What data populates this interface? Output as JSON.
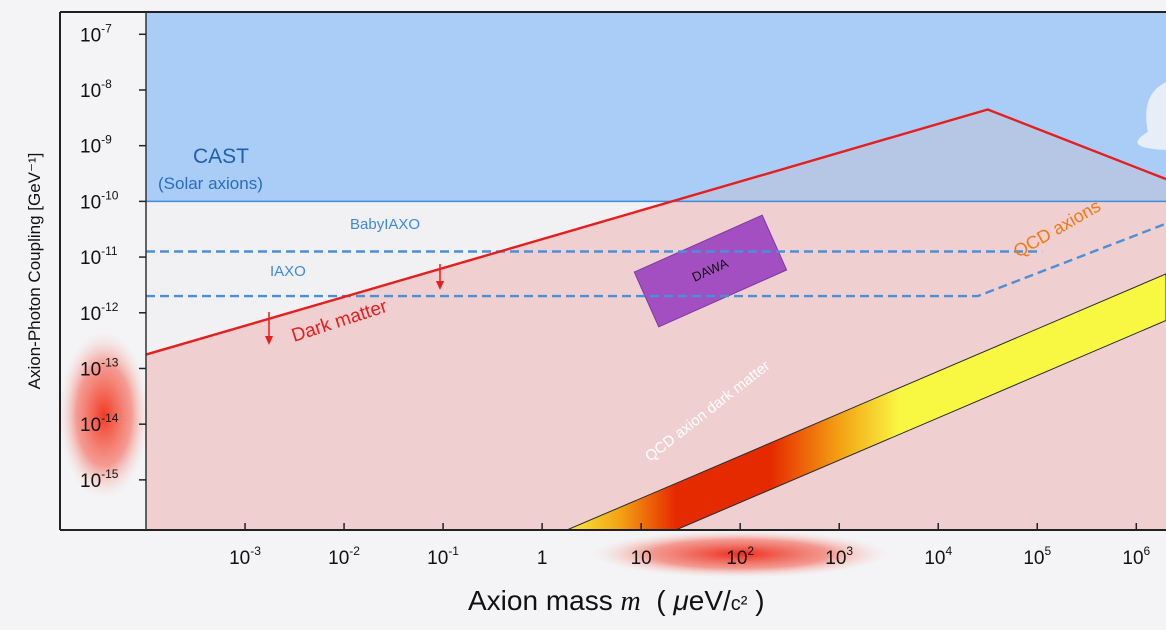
{
  "chart_data": {
    "type": "area",
    "x_scale": "log",
    "y_scale": "log",
    "xlabel": {
      "prefix": "Axion mass ",
      "var": "m",
      "unit_open": "  ( ",
      "mu": "μ",
      "unit_eV": "eV/",
      "unit_c2": "c²",
      "unit_close": " )"
    },
    "ylabel": "Axion-Photon Coupling  [GeV⁻¹]",
    "xlim_log10": [
      -4,
      6.3
    ],
    "ylim_log10": [
      -15.9,
      -6.6
    ],
    "x_ticks": [
      {
        "v": -3,
        "base": "10",
        "exp": "-3"
      },
      {
        "v": -2,
        "base": "10",
        "exp": "-2"
      },
      {
        "v": -1,
        "base": "10",
        "exp": "-1"
      },
      {
        "v": 0,
        "base": "1",
        "exp": ""
      },
      {
        "v": 1,
        "base": "10",
        "exp": ""
      },
      {
        "v": 2,
        "base": "10",
        "exp": "2"
      },
      {
        "v": 3,
        "base": "10",
        "exp": "3"
      },
      {
        "v": 4,
        "base": "10",
        "exp": "4"
      },
      {
        "v": 5,
        "base": "10",
        "exp": "5"
      },
      {
        "v": 6,
        "base": "10",
        "exp": "6"
      }
    ],
    "y_ticks": [
      {
        "v": -7,
        "base": "10",
        "exp": "-7"
      },
      {
        "v": -8,
        "base": "10",
        "exp": "-8"
      },
      {
        "v": -9,
        "base": "10",
        "exp": "-9"
      },
      {
        "v": -10,
        "base": "10",
        "exp": "-10"
      },
      {
        "v": -11,
        "base": "10",
        "exp": "-11"
      },
      {
        "v": -12,
        "base": "10",
        "exp": "-12"
      },
      {
        "v": -13,
        "base": "10",
        "exp": "-13"
      },
      {
        "v": -14,
        "base": "10",
        "exp": "-14"
      },
      {
        "v": -15,
        "base": "10",
        "exp": "-15"
      }
    ],
    "regions": {
      "cast_excluded": {
        "label": "CAST",
        "sublabel": "(Solar axions)",
        "limit_log10_g": -10.0,
        "color": "#aacdf7"
      },
      "dark_matter": {
        "label": "Dark matter",
        "color": "#e51e1e",
        "fill": "#efcfcf",
        "curve_log10": [
          [
            -4.0,
            -12.75
          ],
          [
            4.5,
            -8.35
          ],
          [
            6.3,
            -9.6
          ]
        ]
      },
      "qcd_axion_band": {
        "label": "QCD axions",
        "dm_label": "QCD axion dark matter",
        "color": "#f8f843",
        "dm_color": "#e62a00"
      }
    },
    "series": [
      {
        "name": "BabyIAXO",
        "style": "dashed",
        "color": "#4a90d9",
        "points_log10": [
          [
            -4.0,
            -10.9
          ],
          [
            5.05,
            -10.9
          ]
        ]
      },
      {
        "name": "IAXO",
        "style": "dashed",
        "color": "#4a90d9",
        "points_log10": [
          [
            -4.0,
            -11.7
          ],
          [
            4.4,
            -11.7
          ],
          [
            6.3,
            -10.4
          ]
        ]
      }
    ],
    "experiments": [
      {
        "name": "DAWA",
        "color": "#a34fc2",
        "x_log10": [
          0.9,
          2.5
        ],
        "y_log10": [
          -11.95,
          -10.55
        ],
        "rotation_deg": -24
      }
    ]
  }
}
